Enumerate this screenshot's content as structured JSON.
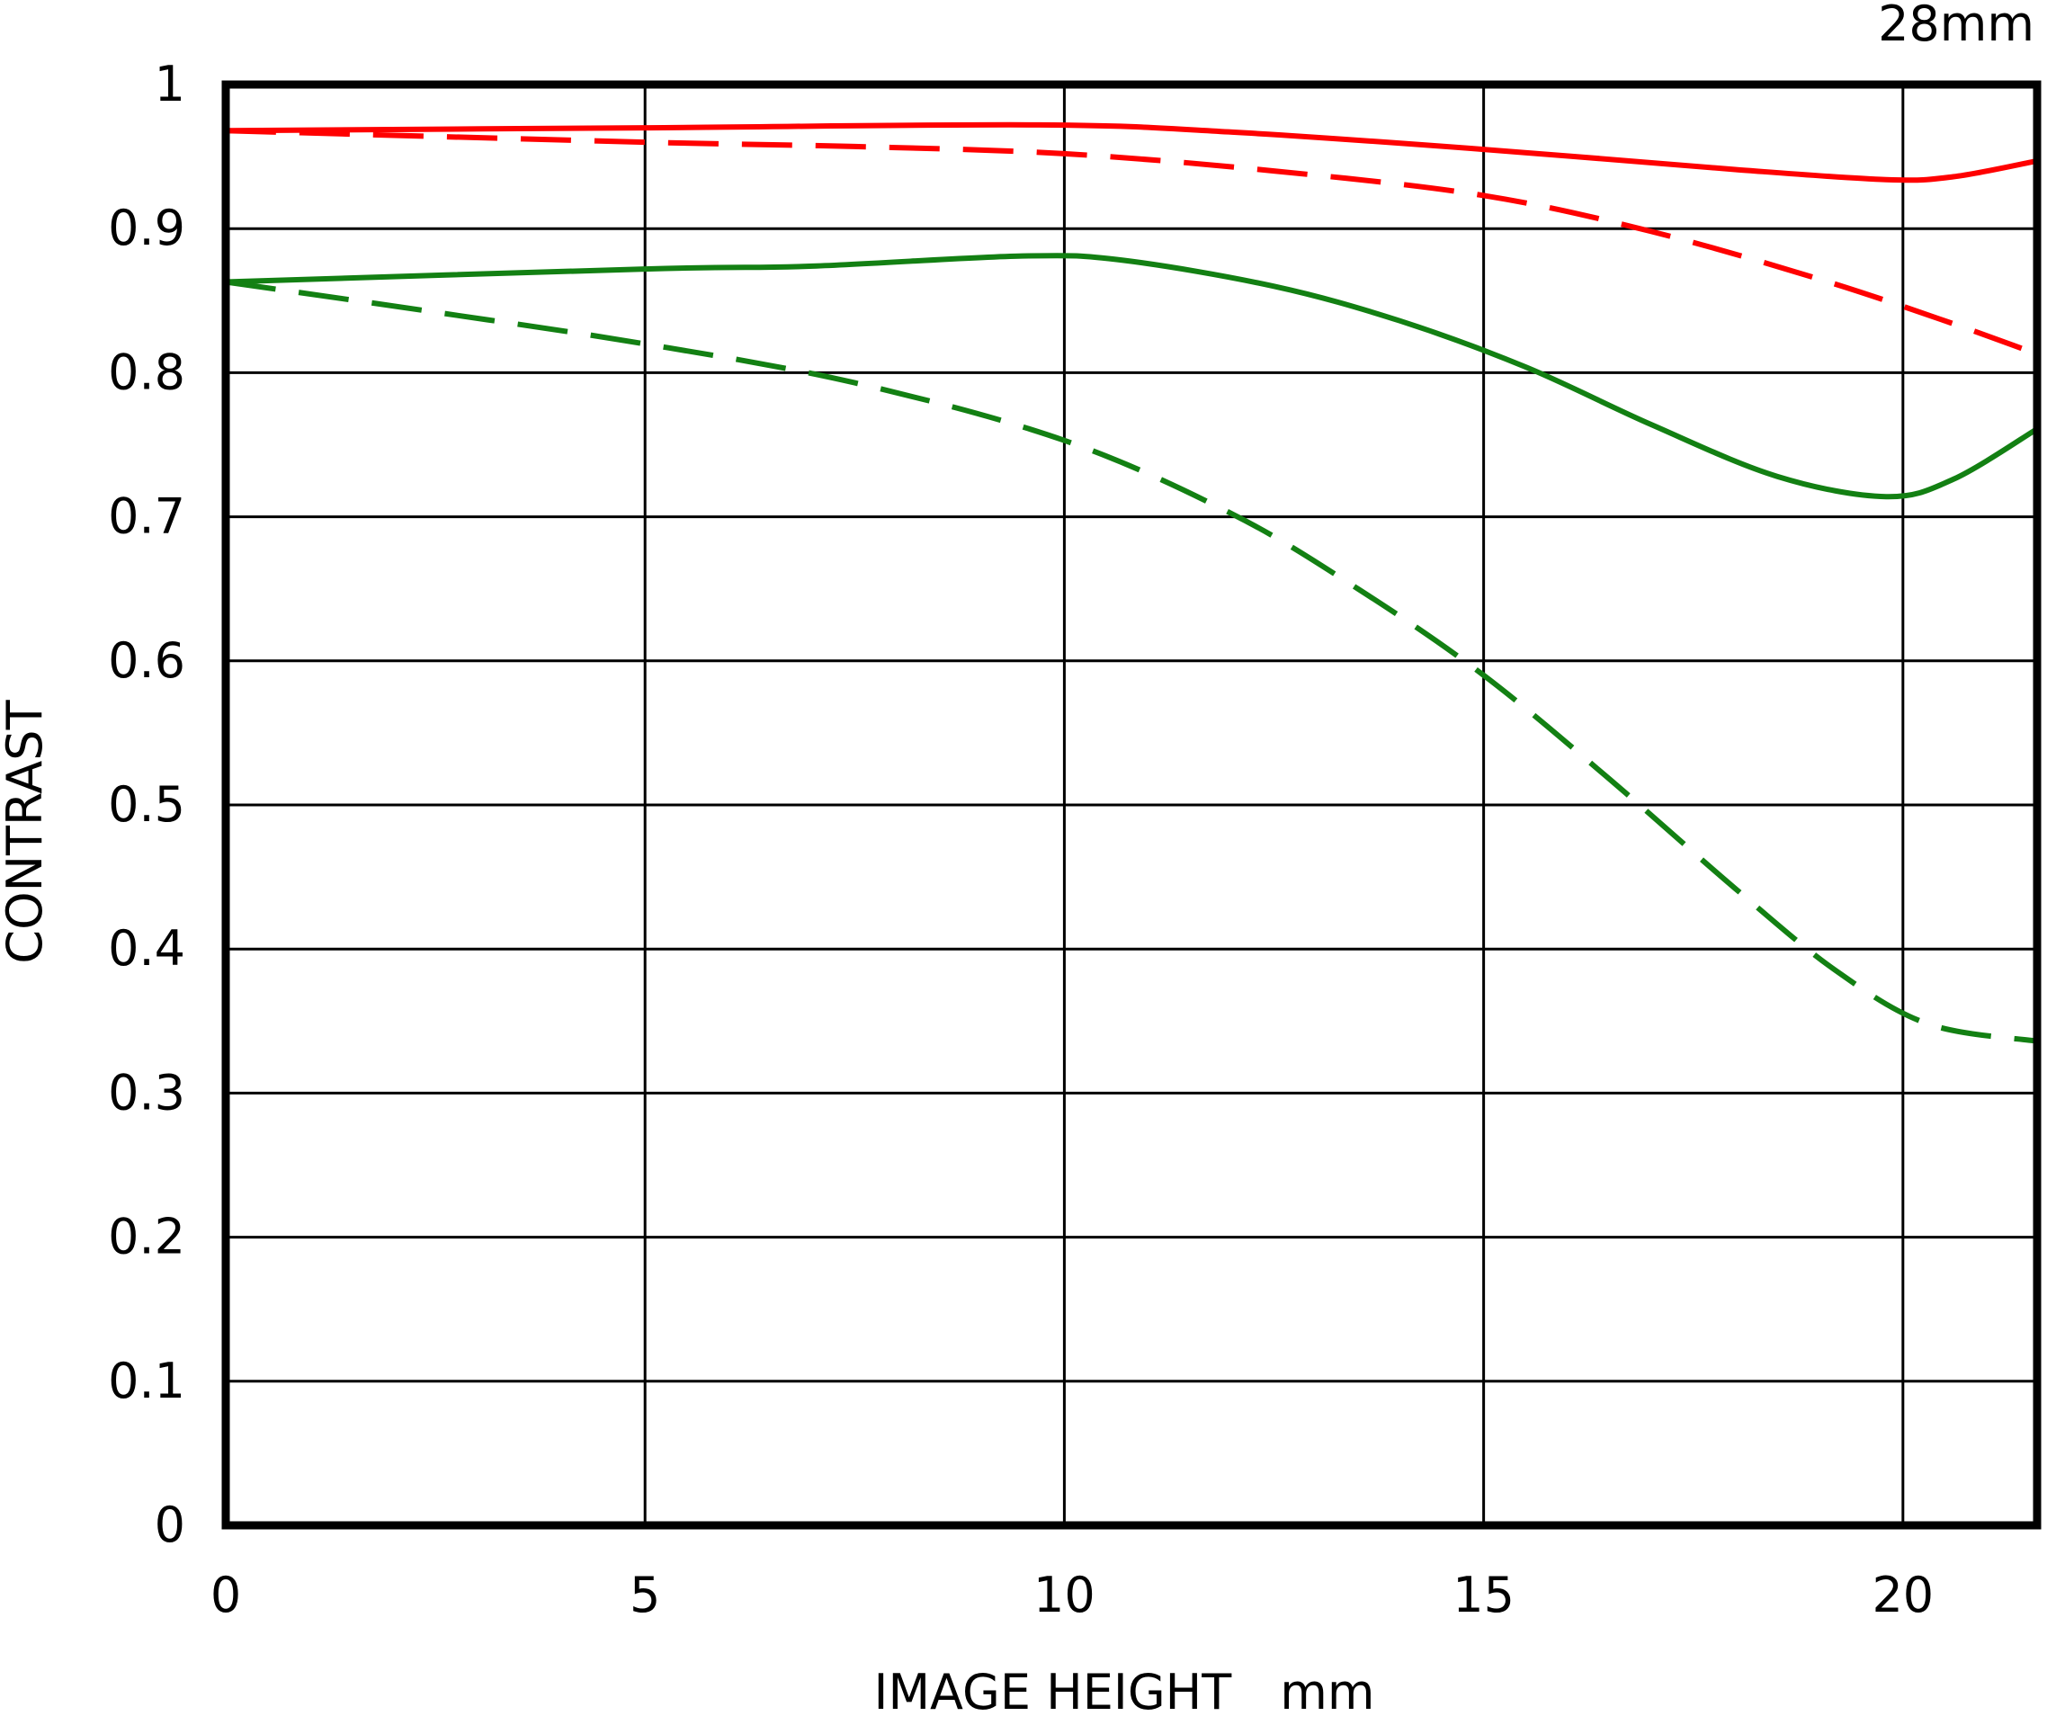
{
  "chart_data": {
    "type": "line",
    "corner_label": "28mm",
    "xlabel": "IMAGE HEIGHT mm",
    "ylabel": "CONTRAST",
    "xlim": [
      0,
      21.6
    ],
    "ylim": [
      0,
      1
    ],
    "x_ticks": [
      0,
      5,
      10,
      15,
      20
    ],
    "x_tick_labels": [
      "0",
      "5",
      "10",
      "15",
      "20"
    ],
    "y_ticks": [
      0,
      0.1,
      0.2,
      0.3,
      0.4,
      0.5,
      0.6,
      0.7,
      0.8,
      0.9,
      1
    ],
    "y_tick_labels": [
      "0",
      "0.1",
      "0.2",
      "0.3",
      "0.4",
      "0.5",
      "0.6",
      "0.7",
      "0.8",
      "0.9",
      "1"
    ],
    "grid": true,
    "colors": {
      "red": "#ff0000",
      "green": "#138013",
      "frame": "#000000"
    },
    "series": [
      {
        "color": "red",
        "dash": "solid",
        "points": [
          [
            0,
            0.968
          ],
          [
            5,
            0.97
          ],
          [
            9.7,
            0.972
          ],
          [
            12,
            0.967
          ],
          [
            15,
            0.955
          ],
          [
            18,
            0.941
          ],
          [
            19.8,
            0.934
          ],
          [
            20.6,
            0.936
          ],
          [
            21.6,
            0.947
          ]
        ]
      },
      {
        "color": "red",
        "dash": "dashed",
        "points": [
          [
            0,
            0.968
          ],
          [
            5,
            0.96
          ],
          [
            7.5,
            0.957
          ],
          [
            10,
            0.952
          ],
          [
            12.5,
            0.94
          ],
          [
            15,
            0.923
          ],
          [
            17,
            0.898
          ],
          [
            19,
            0.865
          ],
          [
            20.5,
            0.836
          ],
          [
            21.6,
            0.813
          ]
        ]
      },
      {
        "color": "green",
        "dash": "solid",
        "points": [
          [
            0,
            0.863
          ],
          [
            5,
            0.872
          ],
          [
            7,
            0.874
          ],
          [
            9.5,
            0.881
          ],
          [
            10.7,
            0.878
          ],
          [
            12.5,
            0.86
          ],
          [
            14,
            0.836
          ],
          [
            15.5,
            0.804
          ],
          [
            17,
            0.764
          ],
          [
            18.5,
            0.728
          ],
          [
            19.8,
            0.714
          ],
          [
            20.6,
            0.726
          ],
          [
            21.6,
            0.761
          ]
        ]
      },
      {
        "color": "green",
        "dash": "dashed",
        "points": [
          [
            0,
            0.863
          ],
          [
            2.5,
            0.842
          ],
          [
            5,
            0.82
          ],
          [
            7.5,
            0.793
          ],
          [
            10,
            0.753
          ],
          [
            12,
            0.702
          ],
          [
            13.5,
            0.65
          ],
          [
            15,
            0.59
          ],
          [
            16.5,
            0.518
          ],
          [
            18,
            0.442
          ],
          [
            19.2,
            0.385
          ],
          [
            20.3,
            0.348
          ],
          [
            21.6,
            0.336
          ]
        ]
      }
    ]
  }
}
